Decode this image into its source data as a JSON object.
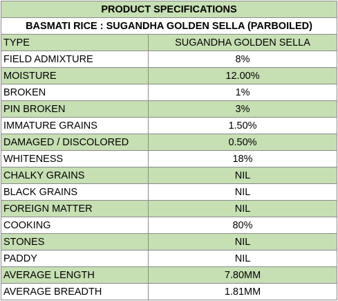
{
  "table": {
    "title": "PRODUCT SPECIFICATIONS",
    "subtitle": "BASMATI RICE : SUGANDHA GOLDEN SELLA (PARBOILED)",
    "header": {
      "param": "TYPE",
      "value": "SUGANDHA GOLDEN SELLA"
    },
    "rows": [
      {
        "param": "FIELD ADMIXTURE",
        "value": "8%"
      },
      {
        "param": "MOISTURE",
        "value": "12.00%"
      },
      {
        "param": "BROKEN",
        "value": "1%"
      },
      {
        "param": "PIN BROKEN",
        "value": "3%"
      },
      {
        "param": "IMMATURE GRAINS",
        "value": "1.50%"
      },
      {
        "param": "DAMAGED / DISCOLORED",
        "value": "0.50%"
      },
      {
        "param": "WHITENESS",
        "value": "18%"
      },
      {
        "param": "CHALKY GRAINS",
        "value": "NIL"
      },
      {
        "param": "BLACK GRAINS",
        "value": "NIL"
      },
      {
        "param": "FOREIGN MATTER",
        "value": "NIL"
      },
      {
        "param": "COOKING",
        "value": "80%"
      },
      {
        "param": "STONES",
        "value": "NIL"
      },
      {
        "param": "PADDY",
        "value": "NIL"
      },
      {
        "param": "AVERAGE LENGTH",
        "value": "7.80MM"
      },
      {
        "param": "AVERAGE BREADTH",
        "value": "1.81MM"
      }
    ],
    "colors": {
      "band_green": "#c6dfb3",
      "band_white": "#ffffff",
      "grid": "#8a8a8a"
    }
  }
}
